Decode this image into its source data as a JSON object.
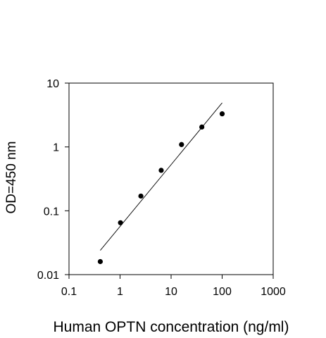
{
  "chart_data": {
    "type": "scatter",
    "xlabel": "Human OPTN concentration (ng/ml)",
    "ylabel": "OD=450 nm",
    "xscale": "log",
    "yscale": "log",
    "xlim": [
      0.1,
      1000
    ],
    "ylim": [
      0.01,
      10
    ],
    "x_ticks": [
      0.1,
      1,
      10,
      100,
      1000
    ],
    "x_tick_labels": [
      "0.1",
      "1",
      "10",
      "100",
      "1000"
    ],
    "y_ticks": [
      0.01,
      0.1,
      1,
      10
    ],
    "y_tick_labels": [
      "0.01",
      "0.1",
      "1",
      "10"
    ],
    "grid": false,
    "series": [
      {
        "points": [
          {
            "x": 0.41,
            "y": 0.016
          },
          {
            "x": 1.02,
            "y": 0.065
          },
          {
            "x": 2.56,
            "y": 0.17
          },
          {
            "x": 6.4,
            "y": 0.43
          },
          {
            "x": 16,
            "y": 1.09
          },
          {
            "x": 40,
            "y": 2.05
          },
          {
            "x": 100,
            "y": 3.3
          }
        ]
      }
    ],
    "fit_line": {
      "x": [
        0.41,
        100
      ],
      "y": [
        0.024,
        4.9
      ]
    }
  }
}
